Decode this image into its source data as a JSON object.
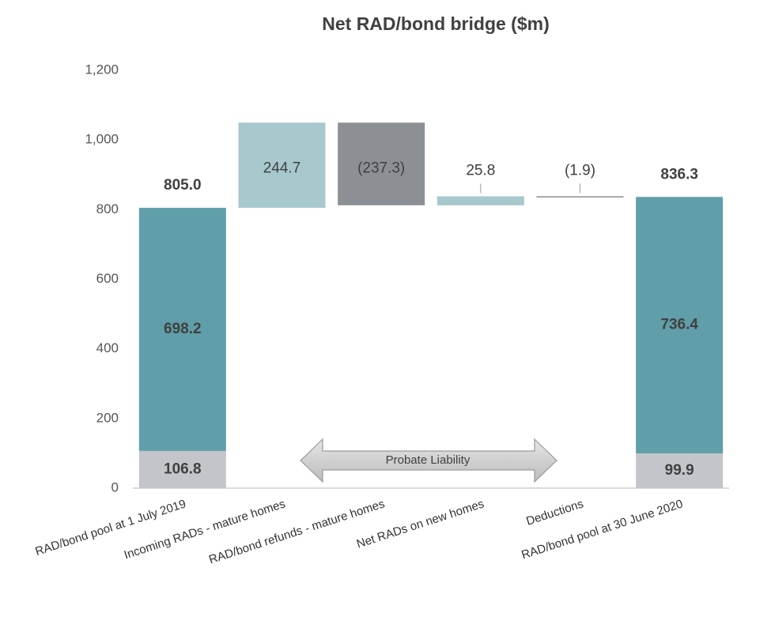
{
  "chart_data": {
    "type": "waterfall",
    "title": "Net RAD/bond bridge ($m)",
    "categories": [
      "RAD/bond pool at 1 July 2019",
      "Incoming RADs - mature homes",
      "RAD/bond refunds - mature homes",
      "Net RADs on new homes",
      "Deductions",
      "RAD/bond pool at 30 June 2020"
    ],
    "values": [
      805.0,
      244.7,
      -237.3,
      25.8,
      -1.9,
      836.3
    ],
    "value_labels": [
      "805.0",
      "244.7",
      "(237.3)",
      "25.8",
      "(1.9)",
      "836.3"
    ],
    "segments": [
      {
        "color": "#c4c5ca",
        "values": [
          106.8,
          null,
          null,
          null,
          null,
          99.9
        ]
      },
      {
        "color": "#609ea9",
        "values": [
          698.2,
          null,
          null,
          null,
          null,
          736.4
        ]
      }
    ],
    "increase_color": "#a7c8cd",
    "decrease_color": "#8c8f94",
    "annotation": "Probate Liability",
    "ylim": [
      0,
      1200
    ],
    "yticks": [
      0,
      200,
      400,
      600,
      800,
      {
        "value": 1000,
        "label": "1,000"
      },
      {
        "value": 1200,
        "label": "1,200"
      }
    ]
  }
}
